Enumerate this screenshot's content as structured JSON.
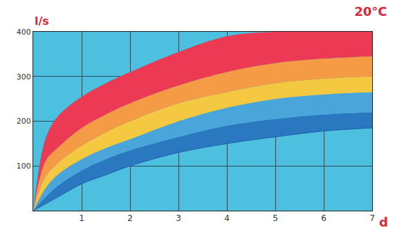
{
  "chart_data": {
    "type": "area",
    "title": "20°C",
    "x_label": "d",
    "y_label": "l/s",
    "x": [
      0,
      0.25,
      0.5,
      1,
      1.5,
      2,
      3,
      4,
      5,
      6,
      7
    ],
    "series": [
      {
        "color": "#1f5fa8",
        "values": [
          0,
          15,
          30,
          60,
          80,
          100,
          130,
          150,
          165,
          178,
          185
        ]
      },
      {
        "color": "#2a78c0",
        "values": [
          0,
          30,
          55,
          90,
          115,
          135,
          165,
          190,
          205,
          215,
          220
        ]
      },
      {
        "color": "#4aa6da",
        "values": [
          0,
          50,
          80,
          115,
          140,
          160,
          200,
          230,
          250,
          260,
          265
        ]
      },
      {
        "color": "#f5c842",
        "values": [
          0,
          75,
          105,
          145,
          175,
          200,
          240,
          265,
          285,
          295,
          300
        ]
      },
      {
        "color": "#f59a45",
        "values": [
          0,
          110,
          140,
          185,
          215,
          240,
          280,
          310,
          330,
          340,
          345
        ]
      },
      {
        "color": "#ec3a55",
        "values": [
          0,
          160,
          210,
          255,
          285,
          310,
          355,
          390,
          400,
          400,
          400
        ]
      }
    ],
    "xlim": [
      0,
      7
    ],
    "ylim": [
      0,
      400
    ],
    "xticks": [
      1,
      2,
      3,
      4,
      5,
      6,
      7
    ],
    "yticks": [
      100,
      200,
      300,
      400
    ],
    "grid": true
  }
}
